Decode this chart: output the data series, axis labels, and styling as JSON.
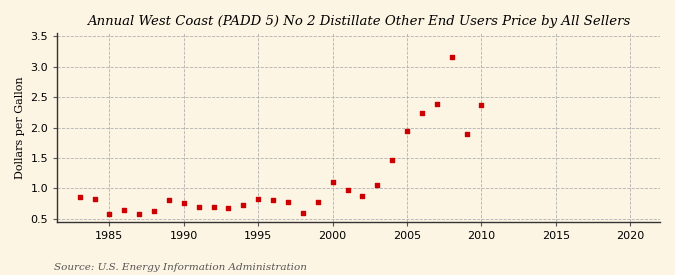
{
  "title": "Annual West Coast (PADD 5) No 2 Distillate Other End Users Price by All Sellers",
  "ylabel": "Dollars per Gallon",
  "source": "Source: U.S. Energy Information Administration",
  "background_color": "#fdf5e4",
  "marker_color": "#cc0000",
  "xlim": [
    1981.5,
    2022
  ],
  "ylim": [
    0.45,
    3.55
  ],
  "xticks": [
    1985,
    1990,
    1995,
    2000,
    2005,
    2010,
    2015,
    2020
  ],
  "yticks": [
    0.5,
    1.0,
    1.5,
    2.0,
    2.5,
    3.0,
    3.5
  ],
  "years": [
    1983,
    1984,
    1985,
    1986,
    1987,
    1988,
    1989,
    1990,
    1991,
    1992,
    1993,
    1994,
    1995,
    1996,
    1997,
    1998,
    1999,
    2000,
    2001,
    2002,
    2003,
    2004,
    2005,
    2006,
    2007,
    2008,
    2009,
    2010
  ],
  "values": [
    0.86,
    0.83,
    0.57,
    0.65,
    0.58,
    0.63,
    0.8,
    0.75,
    0.7,
    0.7,
    0.68,
    0.72,
    0.83,
    0.81,
    0.78,
    0.59,
    0.77,
    1.1,
    0.97,
    0.87,
    1.05,
    1.47,
    1.95,
    2.24,
    2.39,
    3.16,
    1.9,
    2.37
  ],
  "title_fontsize": 9.5,
  "tick_fontsize": 8,
  "ylabel_fontsize": 8,
  "source_fontsize": 7.5
}
